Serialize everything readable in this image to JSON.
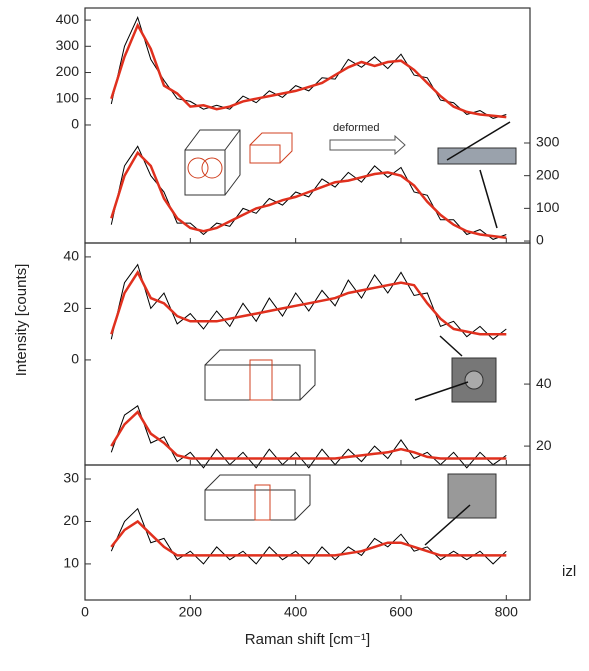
{
  "chart_data": [
    {
      "type": "line",
      "xlim": [
        0,
        845
      ],
      "ylim": [
        -450,
        446
      ],
      "yticks": [
        0,
        100,
        200,
        300,
        400
      ],
      "y2lim": [
        -6,
        713
      ],
      "y2ticks": [
        0,
        100,
        200,
        300
      ],
      "xticks": [
        0,
        200,
        400,
        600,
        800
      ],
      "annotation": "deformed",
      "x": [
        50,
        75,
        100,
        125,
        150,
        175,
        200,
        225,
        250,
        275,
        300,
        325,
        350,
        375,
        400,
        425,
        450,
        475,
        500,
        525,
        550,
        575,
        600,
        625,
        650,
        675,
        700,
        725,
        750,
        775,
        800
      ],
      "series": [
        {
          "color": "#000000",
          "values": [
            80,
            300,
            410,
            250,
            170,
            100,
            90,
            60,
            75,
            60,
            110,
            85,
            130,
            105,
            150,
            130,
            180,
            175,
            250,
            220,
            260,
            215,
            270,
            190,
            180,
            95,
            85,
            40,
            55,
            25,
            40
          ]
        },
        {
          "color": "#e0301e",
          "values": [
            100,
            260,
            380,
            290,
            150,
            120,
            70,
            75,
            60,
            70,
            90,
            100,
            110,
            120,
            130,
            145,
            160,
            190,
            220,
            240,
            225,
            240,
            245,
            210,
            160,
            110,
            70,
            50,
            40,
            35,
            30
          ]
        },
        {
          "color": "#000000",
          "axis": "y2",
          "values": [
            50,
            230,
            290,
            200,
            150,
            55,
            55,
            20,
            55,
            45,
            100,
            85,
            130,
            110,
            150,
            135,
            190,
            165,
            210,
            180,
            230,
            195,
            225,
            150,
            140,
            65,
            65,
            20,
            35,
            5,
            20
          ]
        },
        {
          "color": "#e0301e",
          "axis": "y2",
          "values": [
            70,
            200,
            270,
            230,
            130,
            70,
            40,
            30,
            40,
            60,
            80,
            100,
            110,
            125,
            135,
            150,
            165,
            180,
            185,
            195,
            205,
            210,
            200,
            170,
            120,
            80,
            50,
            30,
            20,
            15,
            10
          ]
        }
      ]
    },
    {
      "type": "line",
      "xlim": [
        0,
        845
      ],
      "ylim": [
        -40.8,
        45.4
      ],
      "yticks": [
        0,
        20,
        40
      ],
      "y2lim": [
        13.9,
        85.5
      ],
      "y2ticks": [
        20,
        40
      ],
      "xticks": [
        0,
        200,
        400,
        600,
        800
      ],
      "ylabel": "Intensity [counts]",
      "x": [
        50,
        75,
        100,
        125,
        150,
        175,
        200,
        225,
        250,
        275,
        300,
        325,
        350,
        375,
        400,
        425,
        450,
        475,
        500,
        525,
        550,
        575,
        600,
        625,
        650,
        675,
        700,
        725,
        750,
        775,
        800
      ],
      "series": [
        {
          "color": "#000000",
          "values": [
            8,
            30,
            37,
            20,
            26,
            14,
            18,
            12,
            19,
            13,
            22,
            15,
            24,
            17,
            26,
            19,
            27,
            21,
            31,
            24,
            33,
            26,
            34,
            25,
            26,
            13,
            15,
            9,
            13,
            8,
            12
          ]
        },
        {
          "color": "#e0301e",
          "values": [
            10,
            26,
            34,
            24,
            22,
            17,
            15,
            15,
            15,
            16,
            17,
            18,
            19,
            20,
            21,
            22,
            23,
            24,
            26,
            27,
            28,
            29,
            30,
            29,
            22,
            16,
            12,
            11,
            10,
            10,
            10
          ]
        },
        {
          "color": "#000000",
          "axis": "y2",
          "values": [
            18,
            30,
            33,
            21,
            23,
            15,
            18,
            13,
            19,
            14,
            18,
            13,
            19,
            14,
            18,
            13,
            19,
            14,
            19,
            15,
            20,
            16,
            22,
            16,
            18,
            14,
            18,
            13,
            18,
            14,
            17
          ]
        },
        {
          "color": "#e0301e",
          "axis": "y2",
          "values": [
            20,
            27,
            31,
            24,
            21,
            17,
            16,
            16,
            16,
            16,
            16,
            16,
            16,
            16,
            16,
            16,
            16,
            16,
            16.5,
            17,
            17.5,
            18,
            19,
            18,
            16.5,
            16,
            16,
            16,
            16,
            16,
            16
          ]
        }
      ]
    },
    {
      "type": "line",
      "xlim": [
        0,
        845
      ],
      "ylim": [
        1.5,
        33.3
      ],
      "yticks": [
        10,
        20,
        30
      ],
      "xticks": [
        0,
        200,
        400,
        600,
        800
      ],
      "xlabel": "Raman shift [cm⁻¹]",
      "annotation": "izl",
      "x": [
        50,
        75,
        100,
        125,
        150,
        175,
        200,
        225,
        250,
        275,
        300,
        325,
        350,
        375,
        400,
        425,
        450,
        475,
        500,
        525,
        550,
        575,
        600,
        625,
        650,
        675,
        700,
        725,
        750,
        775,
        800
      ],
      "series": [
        {
          "color": "#000000",
          "values": [
            13,
            20,
            23,
            15,
            16,
            11,
            13,
            10,
            14,
            11,
            13,
            10,
            14,
            11,
            13,
            10,
            14,
            11,
            14,
            12,
            16,
            14,
            17,
            13,
            14,
            11,
            13,
            11,
            13,
            10,
            13
          ]
        },
        {
          "color": "#e0301e",
          "values": [
            14,
            18,
            20,
            17,
            14,
            12,
            12,
            12,
            12,
            12,
            12,
            12,
            12,
            12,
            12,
            12,
            12,
            12,
            12.5,
            13,
            14,
            15,
            15,
            14,
            13,
            12,
            12,
            12,
            12,
            12,
            12
          ]
        }
      ]
    }
  ]
}
